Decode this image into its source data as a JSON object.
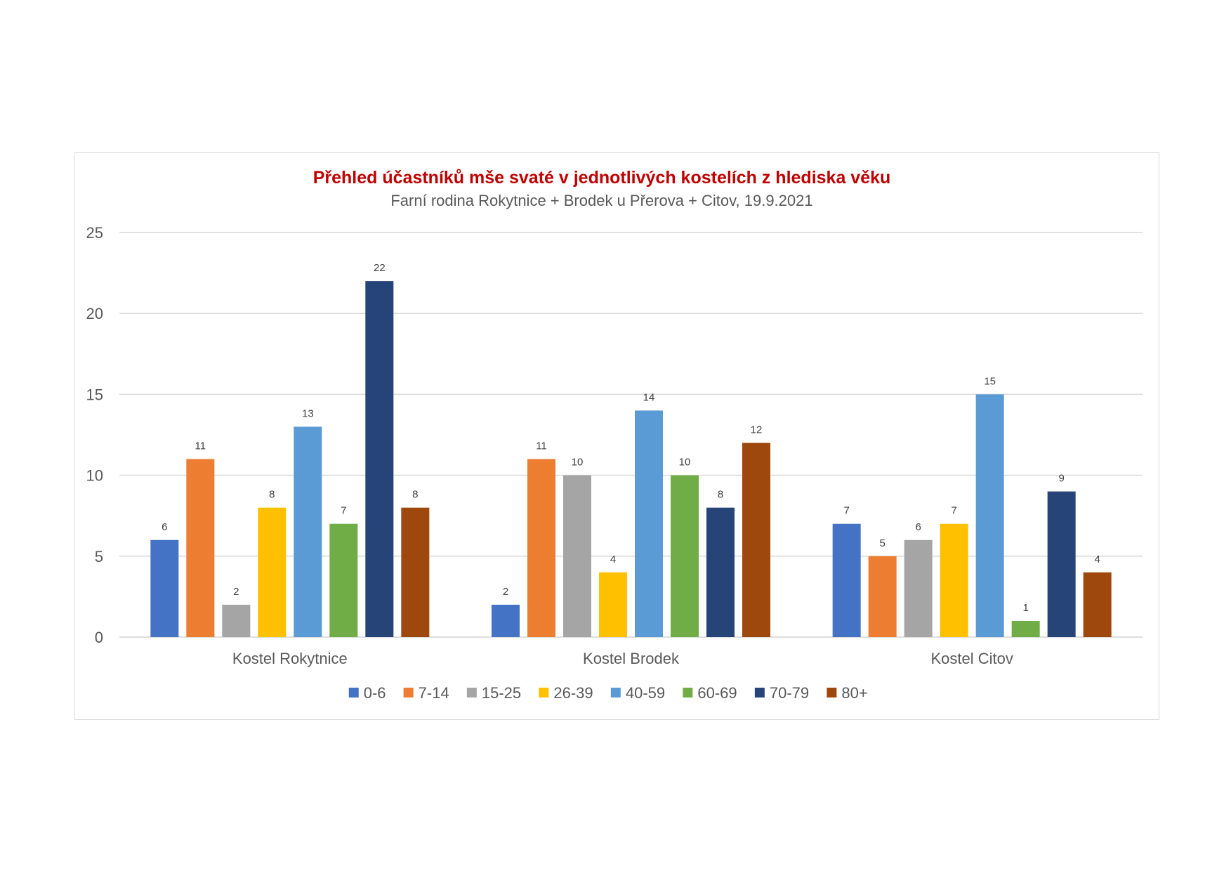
{
  "chart_data": {
    "type": "bar",
    "title": "Přehled účastníků mše svaté v jednotlivých kostelích z hlediska věku",
    "subtitle": "Farní rodina Rokytnice + Brodek u Přerova + Citov, 19.9.2021",
    "title_color": "#c00000",
    "categories": [
      "Kostel Rokytnice",
      "Kostel Brodek",
      "Kostel Citov"
    ],
    "series": [
      {
        "name": "0-6",
        "color": "#4472c4",
        "values": [
          6,
          2,
          7
        ]
      },
      {
        "name": "7-14",
        "color": "#ed7d31",
        "values": [
          11,
          11,
          5
        ]
      },
      {
        "name": "15-25",
        "color": "#a5a5a5",
        "values": [
          2,
          10,
          6
        ]
      },
      {
        "name": "26-39",
        "color": "#ffc000",
        "values": [
          8,
          4,
          7
        ]
      },
      {
        "name": "40-59",
        "color": "#5b9bd5",
        "values": [
          13,
          14,
          15
        ]
      },
      {
        "name": "60-69",
        "color": "#70ad47",
        "values": [
          7,
          10,
          1
        ]
      },
      {
        "name": "70-79",
        "color": "#264478",
        "values": [
          22,
          8,
          9
        ]
      },
      {
        "name": "80+",
        "color": "#9e480e",
        "values": [
          8,
          12,
          4
        ]
      }
    ],
    "ylim": [
      0,
      25
    ],
    "yticks": [
      0,
      5,
      10,
      15,
      20,
      25
    ],
    "grid": true,
    "data_labels": true,
    "legend_position": "bottom"
  }
}
